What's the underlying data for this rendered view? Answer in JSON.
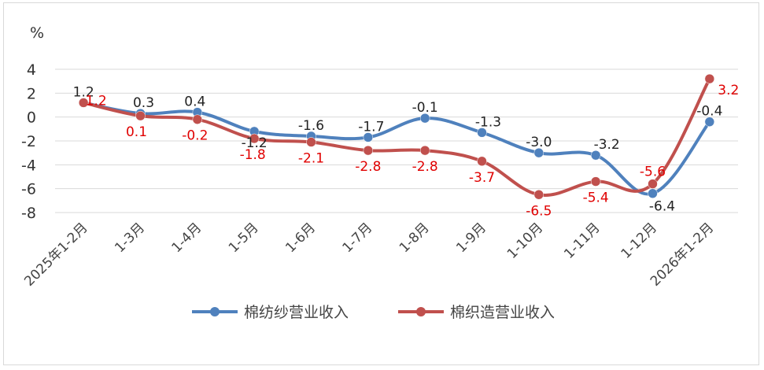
{
  "chart_data": {
    "type": "line",
    "ylabel": "%",
    "ylim": [
      -8,
      4
    ],
    "yticks": [
      4,
      2,
      0,
      -2,
      -4,
      -6,
      -8
    ],
    "grid": true,
    "legend_position": "bottom",
    "categories": [
      "2025年1-2月",
      "1-3月",
      "1-4月",
      "1-5月",
      "1-6月",
      "1-7月",
      "1-8月",
      "1-9月",
      "1-10月",
      "1-11月",
      "1-12月",
      "2026年1-2月"
    ],
    "series": [
      {
        "name": "棉纺纱营业收入",
        "color": "#4f81bd",
        "label_color": "#222222",
        "values": [
          1.2,
          0.3,
          0.4,
          -1.2,
          -1.6,
          -1.7,
          -0.1,
          -1.3,
          -3.0,
          -3.2,
          -6.4,
          -0.4
        ]
      },
      {
        "name": "棉织造营业收入",
        "color": "#c0504d",
        "label_color": "#e00000",
        "values": [
          1.2,
          0.1,
          -0.2,
          -1.8,
          -2.1,
          -2.8,
          -2.8,
          -3.7,
          -6.5,
          -5.4,
          -5.6,
          3.2
        ]
      }
    ],
    "data_labels": {
      "series0": [
        "1.2",
        "0.3",
        "0.4",
        "-1.2",
        "-1.6",
        "-1.7",
        "-0.1",
        "-1.3",
        "-3.0",
        "-3.2",
        "-6.4",
        "-0.4"
      ],
      "series1": [
        "1.2",
        "0.1",
        "-0.2",
        "-1.8",
        "-2.1",
        "-2.8",
        "-2.8",
        "-3.7",
        "-6.5",
        "-5.4",
        "-5.6",
        "3.2"
      ]
    }
  }
}
